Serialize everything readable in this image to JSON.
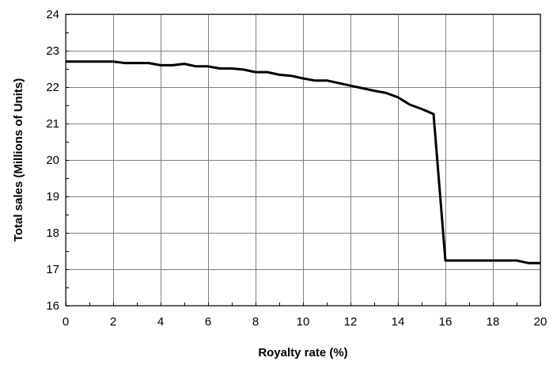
{
  "chart_data": {
    "type": "line",
    "title": "",
    "xlabel": "Royalty rate (%)",
    "ylabel": "Total sales (Millions of Units)",
    "xlim": [
      0,
      20
    ],
    "ylim": [
      16,
      24
    ],
    "x_ticks": [
      0,
      2,
      4,
      6,
      8,
      10,
      12,
      14,
      16,
      18,
      20
    ],
    "y_ticks": [
      16,
      17,
      18,
      19,
      20,
      21,
      22,
      23,
      24
    ],
    "grid": true,
    "legend": "none",
    "series": [
      {
        "color": "#000000",
        "x": [
          0,
          0.5,
          1,
          1.5,
          2,
          2.5,
          3,
          3.5,
          4,
          4.5,
          5,
          5.5,
          6,
          6.5,
          7,
          7.5,
          8,
          8.5,
          9,
          9.5,
          10,
          10.5,
          11,
          11.5,
          12,
          12.5,
          13,
          13.5,
          14,
          14.5,
          15,
          15.5,
          16,
          16.5,
          17,
          17.5,
          18,
          18.5,
          19,
          19.5,
          20
        ],
        "y": [
          22.7,
          22.7,
          22.7,
          22.7,
          22.7,
          22.66,
          22.66,
          22.66,
          22.6,
          22.6,
          22.64,
          22.57,
          22.57,
          22.51,
          22.51,
          22.48,
          22.41,
          22.41,
          22.34,
          22.31,
          22.24,
          22.18,
          22.18,
          22.11,
          22.04,
          21.97,
          21.9,
          21.84,
          21.72,
          21.52,
          21.4,
          21.26,
          17.24,
          17.24,
          17.24,
          17.24,
          17.24,
          17.24,
          17.24,
          17.17,
          17.17
        ]
      }
    ]
  }
}
